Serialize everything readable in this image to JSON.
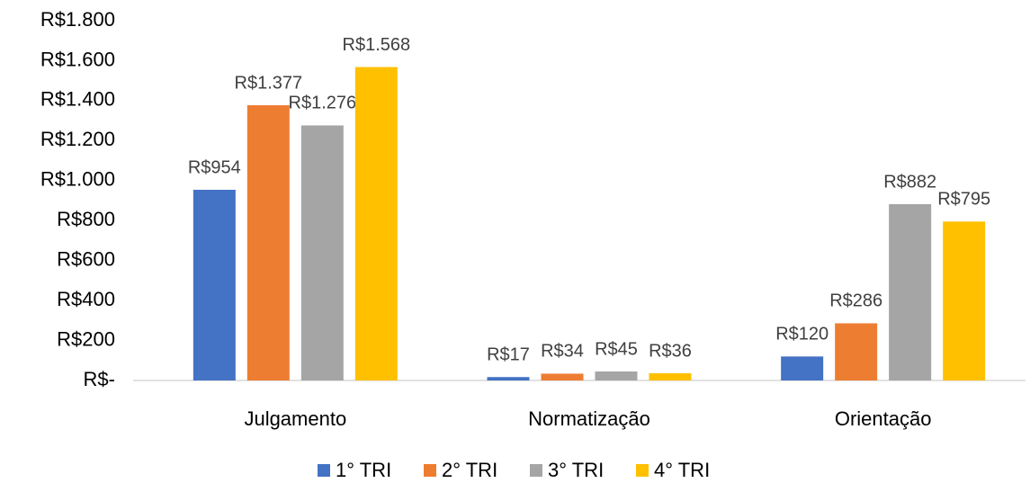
{
  "chart_data": {
    "type": "bar",
    "categories": [
      "Julgamento",
      "Normatização",
      "Orientação"
    ],
    "series": [
      {
        "name": "1° TRI",
        "color": "#4472c4",
        "values": [
          954,
          17,
          120
        ],
        "value_labels": [
          "R$954",
          "R$17",
          "R$120"
        ]
      },
      {
        "name": "2° TRI",
        "color": "#ed7d31",
        "values": [
          1377,
          34,
          286
        ],
        "value_labels": [
          "R$1.377",
          "R$34",
          "R$286"
        ]
      },
      {
        "name": "3° TRI",
        "color": "#a5a5a5",
        "values": [
          1276,
          45,
          882
        ],
        "value_labels": [
          "R$1.276",
          "R$45",
          "R$882"
        ]
      },
      {
        "name": "4° TRI",
        "color": "#ffc000",
        "values": [
          1568,
          36,
          795
        ],
        "value_labels": [
          "R$1.568",
          "R$36",
          "R$795"
        ]
      }
    ],
    "ylim": [
      0,
      1800
    ],
    "yticks": [
      {
        "value": 0,
        "label": "R$-"
      },
      {
        "value": 200,
        "label": "R$200"
      },
      {
        "value": 400,
        "label": "R$400"
      },
      {
        "value": 600,
        "label": "R$600"
      },
      {
        "value": 800,
        "label": "R$800"
      },
      {
        "value": 1000,
        "label": "R$1.000"
      },
      {
        "value": 1200,
        "label": "R$1.200"
      },
      {
        "value": 1400,
        "label": "R$1.400"
      },
      {
        "value": 1600,
        "label": "R$1.600"
      },
      {
        "value": 1800,
        "label": "R$1.800"
      }
    ],
    "grid": false,
    "legend": "bottom"
  }
}
